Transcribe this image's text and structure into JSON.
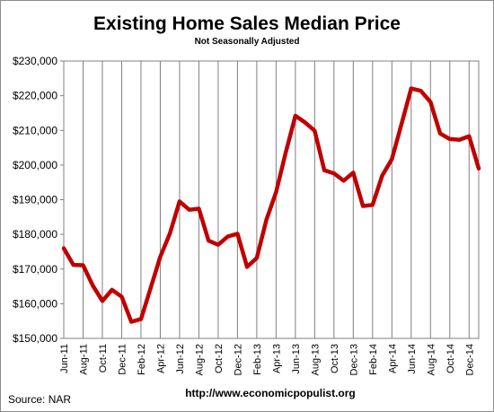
{
  "chart_data": {
    "type": "line",
    "title": "Existing Home Sales Median Price",
    "subtitle": "Not Seasonally Adjusted",
    "source": "Source:  NAR",
    "url": "http://www.economicpopulist.org",
    "ylim": [
      150000,
      230000
    ],
    "y_ticks": [
      150000,
      160000,
      170000,
      180000,
      190000,
      200000,
      210000,
      220000,
      230000
    ],
    "y_tick_labels": [
      "$150,000",
      "$160,000",
      "$170,000",
      "$180,000",
      "$190,000",
      "$200,000",
      "$210,000",
      "$220,000",
      "$230,000"
    ],
    "grid": "vertical",
    "x_tick_labels": [
      "Jun-11",
      "Aug-11",
      "Oct-11",
      "Dec-11",
      "Feb-12",
      "Apr-12",
      "Jun-12",
      "Aug-12",
      "Oct-12",
      "Dec-12",
      "Feb-13",
      "Apr-13",
      "Jun-13",
      "Aug-13",
      "Oct-13",
      "Dec-13",
      "Feb-14",
      "Apr-14",
      "Jun-14",
      "Aug-14",
      "Oct-14",
      "Dec-14"
    ],
    "series": [
      {
        "color": "#c00000",
        "x": [
          "Jun-11",
          "Jul-11",
          "Aug-11",
          "Sep-11",
          "Oct-11",
          "Nov-11",
          "Dec-11",
          "Jan-12",
          "Feb-12",
          "Mar-12",
          "Apr-12",
          "May-12",
          "Jun-12",
          "Jul-12",
          "Aug-12",
          "Sep-12",
          "Oct-12",
          "Nov-12",
          "Dec-12",
          "Jan-13",
          "Feb-13",
          "Mar-13",
          "Apr-13",
          "May-13",
          "Jun-13",
          "Jul-13",
          "Aug-13",
          "Sep-13",
          "Oct-13",
          "Nov-13",
          "Dec-13",
          "Jan-14",
          "Feb-14",
          "Mar-14",
          "Apr-14",
          "May-14",
          "Jun-14",
          "Jul-14",
          "Aug-14",
          "Sep-14",
          "Oct-14",
          "Nov-14",
          "Dec-14",
          "Jan-15"
        ],
        "values": [
          176000,
          171200,
          171100,
          165300,
          160800,
          164000,
          162000,
          154800,
          155600,
          164500,
          173500,
          180300,
          189500,
          187100,
          187400,
          178200,
          177000,
          179400,
          180200,
          170600,
          173200,
          184200,
          192200,
          203600,
          214200,
          212300,
          209900,
          198500,
          197600,
          195500,
          197800,
          188200,
          188500,
          197000,
          201700,
          211800,
          222100,
          221400,
          218200,
          209100,
          207500,
          207300,
          208300,
          199000
        ]
      }
    ]
  }
}
